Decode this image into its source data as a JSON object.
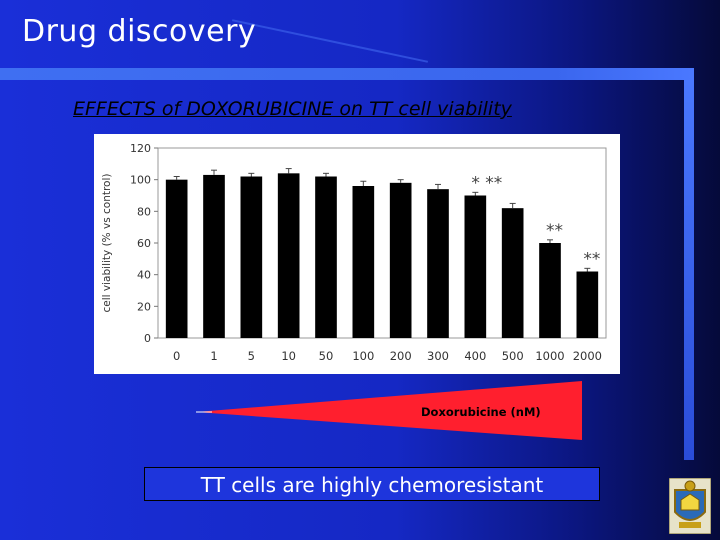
{
  "slide": {
    "title": "Drug discovery",
    "subtitle": "EFFECTS of DOXORUBICINE on TT cell viability",
    "wedge_label": "Doxorubicine (nM)",
    "conclusion": "TT cells are highly chemoresistant",
    "colors": {
      "background": "#1a2fd8",
      "wedge": "#ff1f2e",
      "bars": "#000000"
    }
  },
  "chart_data": {
    "type": "bar",
    "categories": [
      "0",
      "1",
      "5",
      "10",
      "50",
      "100",
      "200",
      "300",
      "400",
      "500",
      "1000",
      "2000"
    ],
    "values": [
      100,
      103,
      102,
      104,
      102,
      96,
      98,
      94,
      90,
      82,
      60,
      42
    ],
    "errors": [
      2,
      3,
      2,
      3,
      2,
      3,
      2,
      3,
      2,
      3,
      2,
      2
    ],
    "significance": [
      "",
      "",
      "",
      "",
      "",
      "",
      "",
      "",
      "* **",
      "",
      "**",
      "**"
    ],
    "ylabel": "cell viability (% vs control)",
    "xlabel": "",
    "ylim": [
      0,
      120
    ],
    "yticks": [
      0,
      20,
      40,
      60,
      80,
      100,
      120
    ],
    "grid": false
  }
}
